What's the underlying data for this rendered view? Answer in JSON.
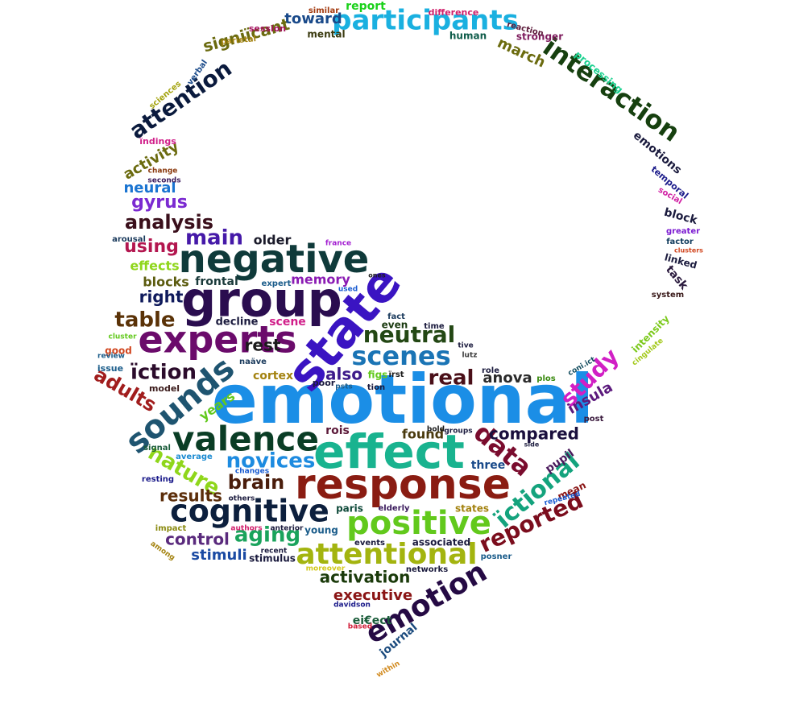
{
  "words": [
    {
      "text": "emotional",
      "color": "#1b8ee6"
    },
    {
      "text": "state",
      "color": "#3a14c2"
    },
    {
      "text": "group",
      "color": "#2a0d4f"
    },
    {
      "text": "negative",
      "color": "#0f3a3a"
    },
    {
      "text": "experts",
      "color": "#6b0b6b"
    },
    {
      "text": "effect",
      "color": "#19b38f"
    },
    {
      "text": "response",
      "color": "#8a1c12"
    },
    {
      "text": "sounds",
      "color": "#1e5470"
    },
    {
      "text": "valence",
      "color": "#0a3d25"
    },
    {
      "text": "cognitive",
      "color": "#0c1f3d"
    },
    {
      "text": "positive",
      "color": "#62c91c"
    },
    {
      "text": "attentional",
      "color": "#a3b40f"
    },
    {
      "text": "emotion",
      "color": "#250a44"
    },
    {
      "text": "participants",
      "color": "#1ab0e0"
    },
    {
      "text": "interaction",
      "color": "#16400f"
    },
    {
      "text": "scenes",
      "color": "#1a74b5"
    },
    {
      "text": "neutral",
      "color": "#234714"
    },
    {
      "text": "data",
      "color": "#7a0c2e"
    },
    {
      "text": "study",
      "color": "#d11fc5"
    },
    {
      "text": "ïctional",
      "color": "#14a37d"
    },
    {
      "text": "reported",
      "color": "#7b0d1d"
    },
    {
      "text": "real",
      "color": "#4a0f18"
    },
    {
      "text": "table",
      "color": "#5a3207"
    },
    {
      "text": "ïction",
      "color": "#2b0b2b"
    },
    {
      "text": "adults",
      "color": "#a11d1d"
    },
    {
      "text": "nature",
      "color": "#8fd61b"
    },
    {
      "text": "novices",
      "color": "#1d8be0"
    },
    {
      "text": "brain",
      "color": "#4a1d0c"
    },
    {
      "text": "aging",
      "color": "#1aa35c"
    },
    {
      "text": "main",
      "color": "#4519a8"
    },
    {
      "text": "analysis",
      "color": "#3a0f1b"
    },
    {
      "text": "attention",
      "color": "#0a1a3d"
    },
    {
      "text": "gyrus",
      "color": "#7b2ad1"
    },
    {
      "text": "using",
      "color": "#b3164f"
    },
    {
      "text": "control",
      "color": "#5a2a7d"
    },
    {
      "text": "results",
      "color": "#5c2e0a"
    },
    {
      "text": "compared",
      "color": "#1a0f3d"
    },
    {
      "text": "activation",
      "color": "#1a3a0a"
    },
    {
      "text": "executive",
      "color": "#8a1414"
    },
    {
      "text": "rest",
      "color": "#1a1a1a"
    },
    {
      "text": "also",
      "color": "#3d1a8a"
    },
    {
      "text": "anova",
      "color": "#2a2a2a"
    },
    {
      "text": "insula",
      "color": "#5c1a7d"
    },
    {
      "text": "right",
      "color": "#0f1a5c"
    },
    {
      "text": "stimuli",
      "color": "#1a4aa3"
    },
    {
      "text": "signiïcant",
      "color": "#6b6b0f"
    },
    {
      "text": "toward",
      "color": "#1a4a8a"
    },
    {
      "text": "march",
      "color": "#6b6b0f"
    },
    {
      "text": "activity",
      "color": "#6b6b0f"
    },
    {
      "text": "neural",
      "color": "#1a74d1"
    },
    {
      "text": "older",
      "color": "#1a1a2a"
    },
    {
      "text": "memory",
      "color": "#8a1ab3"
    },
    {
      "text": "blocks",
      "color": "#5c5c0f"
    },
    {
      "text": "effects",
      "color": "#8fd61b"
    },
    {
      "text": "frontal",
      "color": "#1a3a3a"
    },
    {
      "text": "emotions",
      "color": "#1a1a3d"
    },
    {
      "text": "block",
      "color": "#1a1a3d"
    },
    {
      "text": "task",
      "color": "#2a1a3d"
    },
    {
      "text": "linked",
      "color": "#1a1a3d"
    },
    {
      "text": "intensity",
      "color": "#7bc91b"
    },
    {
      "text": "pupil",
      "color": "#4a1a5c"
    },
    {
      "text": "three",
      "color": "#1a4a8a"
    },
    {
      "text": "found",
      "color": "#4a3a0f"
    },
    {
      "text": "rois",
      "color": "#5c1a3a"
    },
    {
      "text": "years",
      "color": "#62c91c"
    },
    {
      "text": "cortex",
      "color": "#a3820f"
    },
    {
      "text": "decline",
      "color": "#1a1a3d"
    },
    {
      "text": "scene",
      "color": "#d11f8a"
    },
    {
      "text": "even",
      "color": "#1a3a0f"
    },
    {
      "text": "paris",
      "color": "#0f4a3a"
    },
    {
      "text": "young",
      "color": "#1a5c8a"
    },
    {
      "text": "states",
      "color": "#a3820f"
    },
    {
      "text": "mean",
      "color": "#8a1414"
    },
    {
      "text": "stimulus",
      "color": "#1a1a3d"
    },
    {
      "text": "associated",
      "color": "#1a1a3d"
    },
    {
      "text": "journal",
      "color": "#1a4a7d"
    },
    {
      "text": "ei€ect",
      "color": "#1a5c3a"
    },
    {
      "text": "processing",
      "color": "#1ad18f"
    },
    {
      "text": "report",
      "color": "#1ad11a"
    },
    {
      "text": "human",
      "color": "#0f5c4a"
    },
    {
      "text": "mental",
      "color": "#3a3a0f"
    },
    {
      "text": "stronger",
      "color": "#7d1a5c"
    },
    {
      "text": "session",
      "color": "#a30f5c"
    },
    {
      "text": "difference",
      "color": "#d11f6b"
    },
    {
      "text": "similar",
      "color": "#a33a0f"
    },
    {
      "text": "reaction",
      "color": "#5c1a3a"
    },
    {
      "text": "parietal",
      "color": "#a3820f"
    },
    {
      "text": "verbal",
      "color": "#1a4a8a"
    },
    {
      "text": "sciences",
      "color": "#a3a30f"
    },
    {
      "text": "ïndings",
      "color": "#d11f8a"
    },
    {
      "text": "change",
      "color": "#8a3a0f"
    },
    {
      "text": "seconds",
      "color": "#3a1a5c"
    },
    {
      "text": "temporal",
      "color": "#1a1a8a"
    },
    {
      "text": "social",
      "color": "#d11fa3"
    },
    {
      "text": "greater",
      "color": "#7b1ad1"
    },
    {
      "text": "factor",
      "color": "#0f3a5c"
    },
    {
      "text": "clusters",
      "color": "#d1461f"
    },
    {
      "text": "system",
      "color": "#3a1a1a"
    },
    {
      "text": "cingulate",
      "color": "#a3c91b"
    },
    {
      "text": "arousal",
      "color": "#1a3a5c"
    },
    {
      "text": "france",
      "color": "#a31fd1"
    },
    {
      "text": "expert",
      "color": "#1a5c8a"
    },
    {
      "text": "used",
      "color": "#1a5cd1"
    },
    {
      "text": "ones",
      "color": "#1a1a1a"
    },
    {
      "text": "fact",
      "color": "#1a3a5c"
    },
    {
      "text": "time",
      "color": "#1a1a3d"
    },
    {
      "text": "cluster",
      "color": "#62c91c"
    },
    {
      "text": "good",
      "color": "#d1461f"
    },
    {
      "text": "review",
      "color": "#1a5c8a"
    },
    {
      "text": "issue",
      "color": "#1a5c8a"
    },
    {
      "text": "naäve",
      "color": "#1a3a5c"
    },
    {
      "text": "figs",
      "color": "#62c91c"
    },
    {
      "text": "ïrst",
      "color": "#1a1a1a"
    },
    {
      "text": "role",
      "color": "#1a1a3d"
    },
    {
      "text": "lutz",
      "color": "#3a3a3a"
    },
    {
      "text": "tive",
      "color": "#1a1a3d"
    },
    {
      "text": "model",
      "color": "#3a1a1a"
    },
    {
      "text": "poor",
      "color": "#1a1a3d"
    },
    {
      "text": "psts",
      "color": "#1a5c8a"
    },
    {
      "text": "tion",
      "color": "#1a1a3d"
    },
    {
      "text": "plos",
      "color": "#3a8a0f"
    },
    {
      "text": "coni.ict",
      "color": "#0f4a5c"
    },
    {
      "text": "post",
      "color": "#3a1a3d"
    },
    {
      "text": "bold",
      "color": "#1a1a1a"
    },
    {
      "text": "groups",
      "color": "#1a1a3d"
    },
    {
      "text": "side",
      "color": "#1a1a3d"
    },
    {
      "text": "signal",
      "color": "#1a5c3a"
    },
    {
      "text": "average",
      "color": "#1a8ad1"
    },
    {
      "text": "changes",
      "color": "#1a5cd1"
    },
    {
      "text": "resting",
      "color": "#1a1a8a"
    },
    {
      "text": "others",
      "color": "#1a1a3d"
    },
    {
      "text": "repeated",
      "color": "#1a5cd1"
    },
    {
      "text": "elderly",
      "color": "#3a1a5c"
    },
    {
      "text": "impact",
      "color": "#8a8a0f"
    },
    {
      "text": "authors",
      "color": "#d11f6b"
    },
    {
      "text": "anterior",
      "color": "#1a1a3d"
    },
    {
      "text": "among",
      "color": "#a3820f"
    },
    {
      "text": "recent",
      "color": "#1a1a3d"
    },
    {
      "text": "events",
      "color": "#1a1a3d"
    },
    {
      "text": "moreover",
      "color": "#d1c91b"
    },
    {
      "text": "networks",
      "color": "#1a1a3d"
    },
    {
      "text": "posner",
      "color": "#1a5c8a"
    },
    {
      "text": "davidson",
      "color": "#1a1a8a"
    },
    {
      "text": "based",
      "color": "#d11f3a"
    },
    {
      "text": "within",
      "color": "#d18a1f"
    }
  ]
}
